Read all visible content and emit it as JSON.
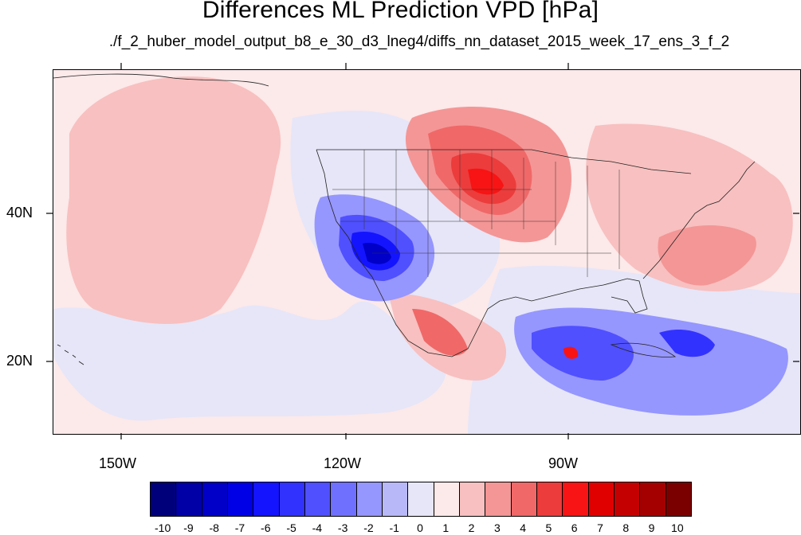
{
  "title": "Differences ML Prediction VPD [hPa]",
  "subtitle": "./f_2_huber_model_output_b8_e_30_d3_lneg4/diffs_nn_dataset_2015_week_17_ens_3_f_2",
  "map": {
    "type": "filled-contour",
    "lat_labels": [
      "40N",
      "20N"
    ],
    "lon_labels": [
      "150W",
      "120W",
      "90W"
    ]
  },
  "colorbar": {
    "labels": [
      "-10",
      "-9",
      "-8",
      "-7",
      "-6",
      "-5",
      "-4",
      "-3",
      "-2",
      "-1",
      "0",
      "1",
      "2",
      "3",
      "4",
      "5",
      "6",
      "7",
      "8",
      "9",
      "10"
    ],
    "colors": [
      "#00007a",
      "#0000a6",
      "#0000c8",
      "#0000e6",
      "#1414ff",
      "#3232ff",
      "#5050ff",
      "#7070ff",
      "#9696ff",
      "#b8b8f8",
      "#e6e6f8",
      "#fce9ea",
      "#f8c0c0",
      "#f49696",
      "#f06868",
      "#ec3c3c",
      "#f81414",
      "#e00000",
      "#c40000",
      "#a40000",
      "#7a0000"
    ]
  }
}
